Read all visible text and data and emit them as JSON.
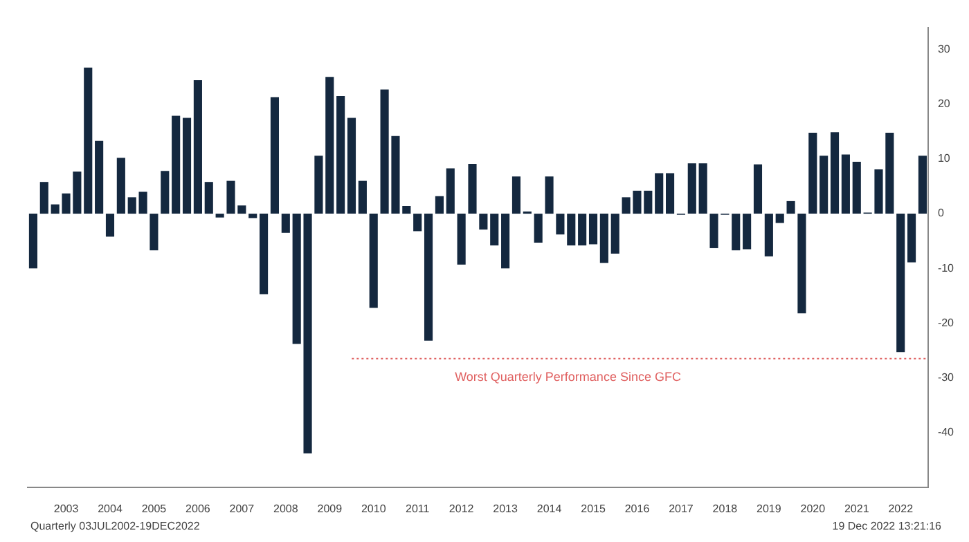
{
  "chart_data": {
    "type": "bar",
    "categories": [
      null,
      null,
      null,
      "2003",
      null,
      null,
      null,
      "2004",
      null,
      null,
      null,
      "2005",
      null,
      null,
      null,
      "2006",
      null,
      null,
      null,
      "2007",
      null,
      null,
      null,
      "2008",
      null,
      null,
      null,
      "2009",
      null,
      null,
      null,
      "2010",
      null,
      null,
      null,
      "2011",
      null,
      null,
      null,
      "2012",
      null,
      null,
      null,
      "2013",
      null,
      null,
      null,
      "2014",
      null,
      null,
      null,
      "2015",
      null,
      null,
      null,
      "2016",
      null,
      null,
      null,
      "2017",
      null,
      null,
      null,
      "2018",
      null,
      null,
      null,
      "2019",
      null,
      null,
      null,
      "2020",
      null,
      null,
      null,
      "2021",
      null,
      null,
      null,
      "2022",
      null,
      null
    ],
    "values": [
      -10,
      5.8,
      1.7,
      3.7,
      7.7,
      26.7,
      13.3,
      -4.2,
      10.2,
      3,
      4,
      -6.7,
      7.8,
      17.9,
      17.5,
      24.4,
      5.8,
      -0.7,
      6,
      1.5,
      -0.8,
      -14.7,
      21.3,
      -3.5,
      -23.8,
      -43.8,
      10.6,
      25,
      21.5,
      17.5,
      6,
      -17.2,
      22.7,
      14.2,
      1.4,
      -3.2,
      -23.2,
      3.2,
      8.3,
      -9.3,
      9.1,
      -2.9,
      -5.8,
      -10,
      6.8,
      0.4,
      -5.3,
      6.8,
      -3.8,
      -5.8,
      -5.8,
      -5.6,
      -9,
      -7.3,
      3,
      4.2,
      4.2,
      7.4,
      7.4,
      -0.2,
      9.2,
      9.2,
      -6.3,
      -0.2,
      -6.7,
      -6.5,
      9,
      -7.8,
      -1.7,
      2.3,
      -18.2,
      14.8,
      10.6,
      14.9,
      10.8,
      9.5,
      0.2,
      8.1,
      14.8,
      -25.3,
      -8.9,
      10.6
    ],
    "color": "#14283f",
    "ylim": [
      -50,
      34
    ],
    "yticks": [
      30,
      20,
      10,
      0,
      -10,
      -20,
      -30,
      -40
    ],
    "grid": false,
    "legend": false,
    "ref_lines": [
      {
        "axis": "y",
        "value": -26.5,
        "label": "Worst Quarterly Performance Since GFC",
        "color": "#e06060",
        "line_style": "dotted"
      }
    ],
    "annotations": [
      "Quarterly 03JUL2002-19DEC2022",
      "19 Dec 2022 13:21:16"
    ]
  }
}
